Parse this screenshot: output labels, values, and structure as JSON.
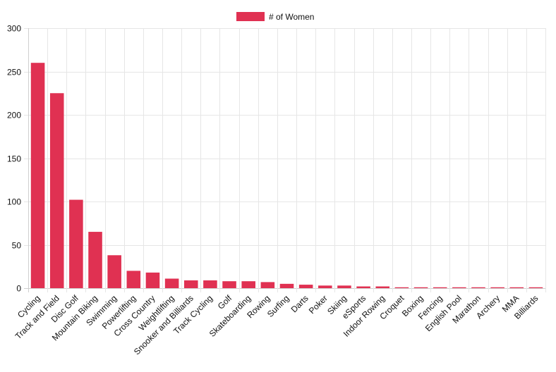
{
  "chart_data": {
    "type": "bar",
    "title": "",
    "xlabel": "",
    "ylabel": "",
    "legend": {
      "position": "top-center"
    },
    "grid": true,
    "ylim": [
      0,
      300
    ],
    "yticks": [
      0,
      50,
      100,
      150,
      200,
      250,
      300
    ],
    "categories": [
      "Cycling",
      "Track and Field",
      "Disc Golf",
      "Mountain Biking",
      "Swimming",
      "Powerlifting",
      "Cross Country",
      "Weightlifting",
      "Snooker and Billiards",
      "Track Cycling",
      "Golf",
      "Skateboarding",
      "Rowing",
      "Surfing",
      "Darts",
      "Poker",
      "Skiing",
      "eSports",
      "Indoor Rowing",
      "Croquet",
      "Boxing",
      "Fencing",
      "English Pool",
      "Marathon",
      "Archery",
      "MMA",
      "Billiards"
    ],
    "series": [
      {
        "name": "# of Women",
        "color": "#E03152",
        "values": [
          260,
          225,
          102,
          65,
          38,
          20,
          18,
          11,
          9,
          9,
          8,
          8,
          7,
          5,
          4,
          3,
          3,
          2,
          2,
          1,
          1,
          1,
          1,
          1,
          1,
          1,
          1
        ]
      }
    ]
  }
}
